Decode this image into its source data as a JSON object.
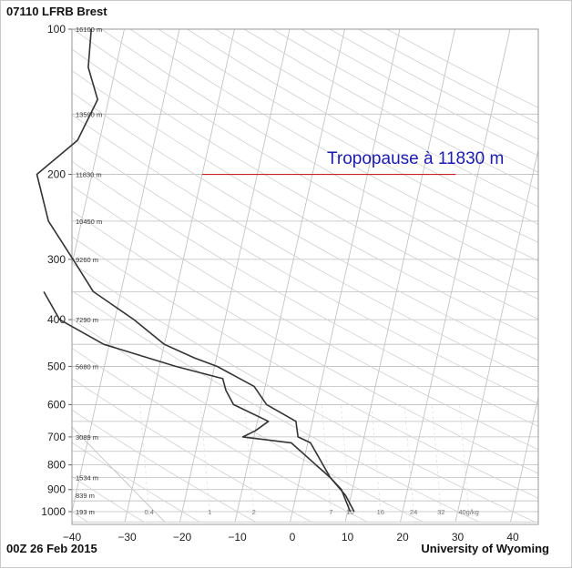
{
  "header": {
    "station": "07110 LFRB Brest"
  },
  "footer": {
    "time": "00Z 26 Feb 2015",
    "source": "University of Wyoming"
  },
  "annotation": {
    "text": "Tropopause à 11830 m",
    "color": "#cc2222",
    "pressure": 200,
    "temp_from": -30,
    "temp_to": 16
  },
  "chart_data": {
    "type": "line",
    "subtype": "skew-T log-P sounding",
    "xlabel": "",
    "ylabel": "",
    "x_ticks": [
      -40,
      -30,
      -20,
      -10,
      0,
      10,
      20,
      30,
      40
    ],
    "y_ticks": [
      100,
      200,
      300,
      400,
      500,
      600,
      700,
      800,
      900,
      1000
    ],
    "y_scale": "log",
    "y_inverted": true,
    "xlim": [
      -40,
      45
    ],
    "ylim": [
      1050,
      100
    ],
    "height_labels": [
      {
        "p": 100,
        "label": "16100 m"
      },
      {
        "p": 150,
        "label": "13590 m"
      },
      {
        "p": 200,
        "label": "11830 m"
      },
      {
        "p": 250,
        "label": "10450 m"
      },
      {
        "p": 300,
        "label": "9260 m"
      },
      {
        "p": 400,
        "label": "7290 m"
      },
      {
        "p": 500,
        "label": "5680 m"
      },
      {
        "p": 700,
        "label": "3089 m"
      },
      {
        "p": 850,
        "label": "1534 m"
      },
      {
        "p": 925,
        "label": "839 m"
      },
      {
        "p": 1000,
        "label": "193 m"
      }
    ],
    "mixing_ratio_labels": [
      {
        "t": -26,
        "label": "0.4"
      },
      {
        "t": -15,
        "label": "1"
      },
      {
        "t": -7,
        "label": "2"
      },
      {
        "t": 7,
        "label": "7"
      },
      {
        "t": 10.5,
        "label": "10"
      },
      {
        "t": 16,
        "label": "16"
      },
      {
        "t": 22,
        "label": "24"
      },
      {
        "t": 27,
        "label": "32"
      },
      {
        "t": 32,
        "label": "40g/kg"
      }
    ],
    "series": [
      {
        "color": "#333333",
        "points": [
          {
            "p": 1000,
            "t": 11.2
          },
          {
            "p": 925,
            "t": 9.0
          },
          {
            "p": 850,
            "t": 5.5
          },
          {
            "p": 720,
            "t": 0.5
          },
          {
            "p": 700,
            "t": -2
          },
          {
            "p": 650,
            "t": -3
          },
          {
            "p": 600,
            "t": -9
          },
          {
            "p": 550,
            "t": -12
          },
          {
            "p": 500,
            "t": -19.5
          },
          {
            "p": 480,
            "t": -24
          },
          {
            "p": 450,
            "t": -30
          },
          {
            "p": 400,
            "t": -36.5
          },
          {
            "p": 350,
            "t": -45
          },
          {
            "p": 300,
            "t": -50
          },
          {
            "p": 250,
            "t": -56
          },
          {
            "p": 200,
            "t": -60
          },
          {
            "p": 170,
            "t": -54
          },
          {
            "p": 140,
            "t": -52
          },
          {
            "p": 120,
            "t": -55
          },
          {
            "p": 100,
            "t": -56
          }
        ]
      },
      {
        "color": "#333333",
        "points": [
          {
            "p": 1000,
            "t": 10.5
          },
          {
            "p": 900,
            "t": 8.0
          },
          {
            "p": 850,
            "t": 5.5
          },
          {
            "p": 720,
            "t": -3
          },
          {
            "p": 700,
            "t": -12
          },
          {
            "p": 680,
            "t": -10
          },
          {
            "p": 650,
            "t": -8
          },
          {
            "p": 600,
            "t": -15
          },
          {
            "p": 560,
            "t": -17
          },
          {
            "p": 530,
            "t": -18
          },
          {
            "p": 500,
            "t": -27
          },
          {
            "p": 450,
            "t": -41
          },
          {
            "p": 400,
            "t": -50
          },
          {
            "p": 350,
            "t": -54
          }
        ]
      }
    ]
  }
}
